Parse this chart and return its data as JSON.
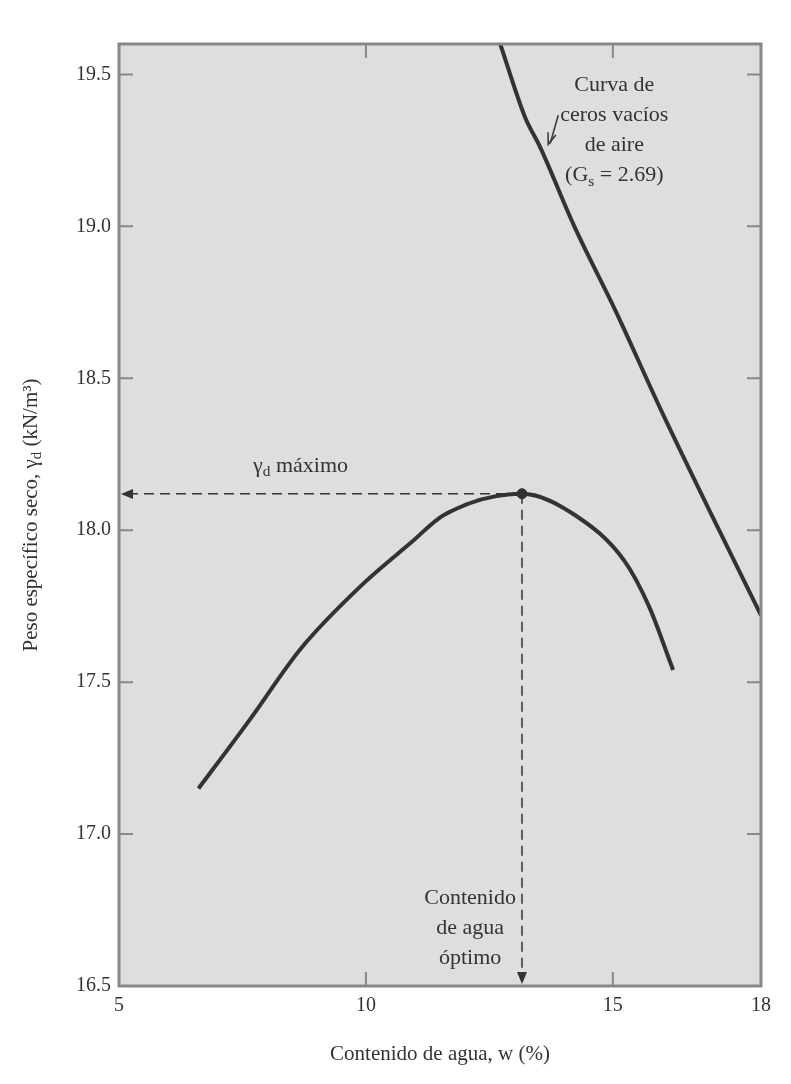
{
  "chart_data": {
    "type": "line",
    "xlabel": "Contenido de agua, w (%)",
    "ylabel": "Peso específico seco, γ$_{d}$ (kN/m³)",
    "xlim": [
      5,
      18
    ],
    "xticks": [
      5,
      10,
      15,
      18
    ],
    "ylim": [
      16.5,
      19.6
    ],
    "yticks": [
      16.5,
      {
        "value": 17,
        "label": "17.0"
      },
      17.5,
      {
        "value": 18,
        "label": "18.0"
      },
      18.5,
      {
        "value": 19,
        "label": "19.0"
      },
      19.5
    ],
    "grid": false,
    "series": [
      {
        "color": "#333333",
        "x": [
          6.61,
          7.62,
          8.68,
          9.92,
          10.92,
          11.58,
          13.16,
          14.23,
          15.23,
          15.73,
          16.22
        ],
        "values": [
          17.15,
          17.37,
          17.61,
          17.82,
          17.96,
          18.05,
          18.12,
          18.05,
          17.9,
          17.75,
          17.54
        ]
      },
      {
        "color": "#333333",
        "x": [
          12.72,
          13.22,
          13.53,
          14.22,
          15.06,
          15.99,
          16.91,
          18
        ],
        "values": [
          19.6,
          19.36,
          19.26,
          19,
          18.72,
          18.39,
          18.08,
          17.72
        ]
      },
      {
        "type": "scatter",
        "color": "#333333",
        "x": [
          13.16
        ],
        "values": [
          18.12
        ]
      }
    ],
    "ref_lines": [
      {
        "axis": "y",
        "value": 18.12,
        "label": "γ$_{d}$ máximo",
        "line_style": "dashed"
      },
      {
        "axis": "x",
        "value": 13.16,
        "label": "Contenido\nde agua\nóptimo",
        "line_style": "dashed"
      }
    ],
    "annotations": [
      {
        "text": "Curva de\nceros vacíos\nde aire\n(G$_{s}$ = 2.69)",
        "x": 13.53,
        "y": 19.26
      }
    ]
  }
}
